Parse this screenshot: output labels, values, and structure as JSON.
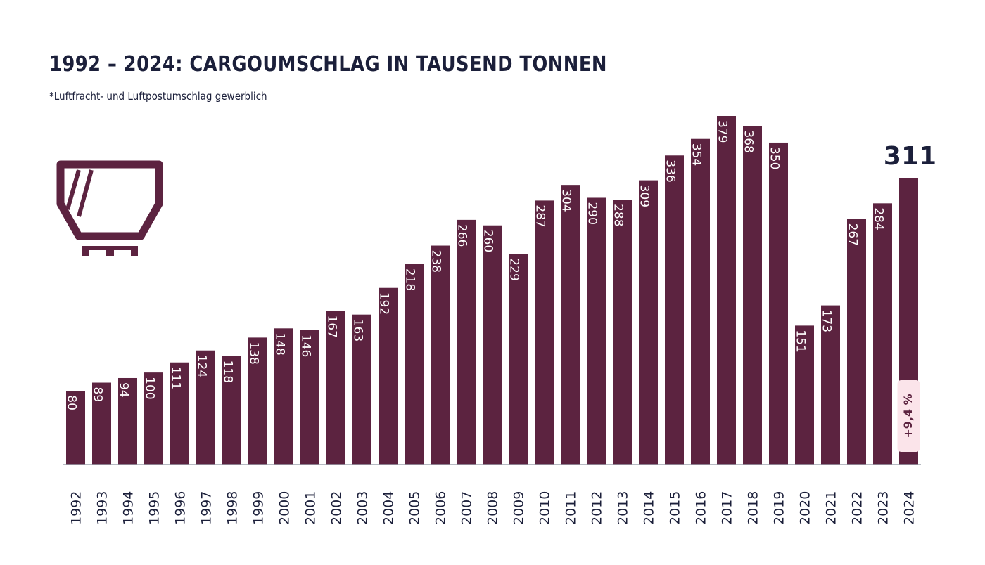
{
  "header": {
    "title": "1992 – 2024: CARGOUMSCHLAG IN TAUSEND TONNEN",
    "subtitle": "*Luftfracht- und Luftpostumschlag gewerblich"
  },
  "icon": {
    "name": "cargo-container-icon",
    "color": "#5c2340"
  },
  "colors": {
    "bar": "#5c2340",
    "text": "#1b1f3a",
    "badge_bg": "#fbe4ea"
  },
  "chart_data": {
    "type": "bar",
    "title": "1992 – 2024: CARGOUMSCHLAG IN TAUSEND TONNEN",
    "subtitle": "*Luftfracht- und Luftpostumschlag gewerblich",
    "xlabel": "",
    "ylabel": "",
    "ylim": [
      0,
      400
    ],
    "grid": false,
    "categories": [
      "1992",
      "1993",
      "1994",
      "1995",
      "1996",
      "1997",
      "1998",
      "1999",
      "2000",
      "2001",
      "2002",
      "2003",
      "2004",
      "2005",
      "2006",
      "2007",
      "2008",
      "2009",
      "2010",
      "2011",
      "2012",
      "2013",
      "2014",
      "2015",
      "2016",
      "2017",
      "2018",
      "2019",
      "2020",
      "2021",
      "2022",
      "2023",
      "2024"
    ],
    "values": [
      80,
      89,
      94,
      100,
      111,
      124,
      118,
      138,
      148,
      146,
      167,
      163,
      192,
      218,
      238,
      266,
      260,
      229,
      287,
      304,
      290,
      288,
      309,
      336,
      354,
      379,
      368,
      350,
      151,
      173,
      267,
      284,
      311
    ],
    "value_labels": [
      "80",
      "89",
      "94",
      "100",
      "111",
      "124",
      "118",
      "138",
      "148",
      "146",
      "167",
      "163",
      "192",
      "218",
      "238",
      "266",
      "260",
      "229",
      "287",
      "304",
      "290",
      "288",
      "309",
      "336",
      "354",
      "379",
      "368",
      "350",
      "151",
      "173",
      "267",
      "284",
      ""
    ],
    "highlight": {
      "category": "2024",
      "value_label": "311",
      "change_label": "+9,4 %"
    }
  }
}
